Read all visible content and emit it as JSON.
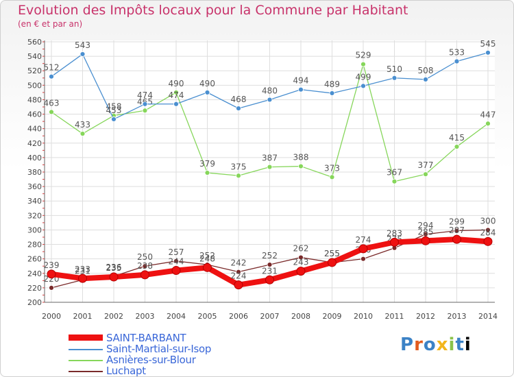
{
  "header": {
    "title": "Evolution des Impôts locaux pour la Commune par Habitant",
    "subtitle": "(en € et par an)"
  },
  "logo_text": "Proxiti",
  "chart_data": {
    "type": "line",
    "x": [
      "2000",
      "2001",
      "2002",
      "2003",
      "2004",
      "2005",
      "2006",
      "2007",
      "2008",
      "2009",
      "2010",
      "2011",
      "2012",
      "2013",
      "2014"
    ],
    "ylim": [
      200,
      560
    ],
    "yticks": [
      200,
      220,
      240,
      260,
      280,
      300,
      320,
      340,
      360,
      380,
      400,
      420,
      440,
      460,
      480,
      500,
      520,
      540,
      560
    ],
    "grid": true,
    "legend_position": "bottom-left",
    "series": [
      {
        "name": "SAINT-BARBANT",
        "color": "#ee1111",
        "values": [
          239,
          233,
          235,
          238,
          244,
          248,
          224,
          231,
          243,
          255,
          274,
          283,
          285,
          287,
          284
        ]
      },
      {
        "name": "Saint-Martial-sur-Isop",
        "color": "#4a8fd0",
        "values": [
          512,
          543,
          453,
          474,
          474,
          490,
          468,
          480,
          494,
          489,
          499,
          510,
          508,
          533,
          545
        ]
      },
      {
        "name": "Asnières-sur-Blour",
        "color": "#86d65a",
        "values": [
          463,
          433,
          458,
          465,
          490,
          379,
          375,
          387,
          388,
          373,
          529,
          367,
          377,
          415,
          447
        ]
      },
      {
        "name": "Luchapt",
        "color": "#7a2a2a",
        "values": [
          220,
          231,
          236,
          250,
          257,
          252,
          242,
          252,
          262,
          255,
          260,
          275,
          294,
          299,
          300
        ]
      }
    ]
  }
}
